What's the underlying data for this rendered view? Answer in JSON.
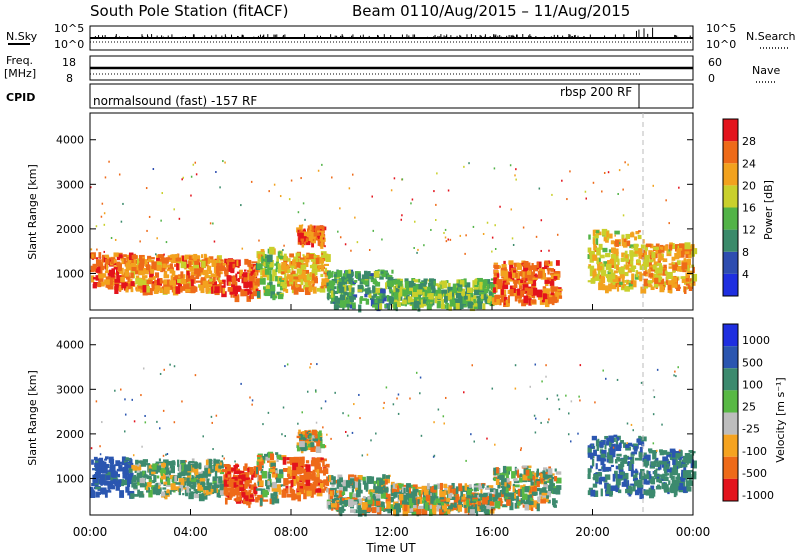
{
  "header": {
    "station": "South Pole Station (fitACF)",
    "beam": "Beam 01",
    "dates": "10/Aug/2015 – 11/Aug/2015"
  },
  "summary": {
    "nsky_label": "N.Sky",
    "nsearch_label": "N.Search",
    "freq_label": "Freq.",
    "freq_unit": "[MHz]",
    "nave_label": "Nave",
    "cpid_label": "CPID",
    "noise_ticks": [
      "10^5",
      "10^0"
    ],
    "noise_ticks_right": [
      "10^5",
      "10^0"
    ],
    "freq_ticks": [
      "18",
      "8"
    ],
    "nave_ticks": [
      "60",
      "0"
    ],
    "cpid_programs": [
      {
        "name": "normalsound (fast) -157 RF",
        "start_hour": 0
      },
      {
        "name": "rbsp 200 RF",
        "start_hour": 22
      }
    ]
  },
  "chart_data": [
    {
      "type": "heatmap",
      "name": "power-panel",
      "ylabel": "Slant Range [km]",
      "y_ticks": [
        "1000",
        "2000",
        "3000",
        "4000"
      ],
      "ylim": [
        180,
        4600
      ],
      "colorbar": {
        "label": "Power [dB]",
        "ticks": [
          "4",
          "8",
          "12",
          "16",
          "20",
          "24",
          "28"
        ],
        "colors": [
          "#1f2fe0",
          "#2e4db0",
          "#3a8a6a",
          "#52b347",
          "#c9d02c",
          "#f2a21e",
          "#ee6a18",
          "#e3131c"
        ]
      }
    },
    {
      "type": "heatmap",
      "name": "velocity-panel",
      "ylabel": "Slant Range [km]",
      "y_ticks": [
        "1000",
        "2000",
        "3000",
        "4000"
      ],
      "ylim": [
        180,
        4600
      ],
      "colorbar": {
        "label": "Velocity [m s⁻¹]",
        "ticks": [
          "1000",
          "500",
          "100",
          "25",
          "-25",
          "-100",
          "-500",
          "-1000"
        ],
        "colors": [
          "#1f2fe0",
          "#2b56b0",
          "#3c8a6e",
          "#58b844",
          "#bdbdbd",
          "#f5a320",
          "#ee6a18",
          "#e3131c"
        ]
      }
    }
  ],
  "x_axis": {
    "label": "Time UT",
    "ticks": [
      "00:00",
      "04:00",
      "08:00",
      "12:00",
      "16:00",
      "20:00",
      "00:00"
    ]
  },
  "echo_regions": [
    {
      "t0": 0.0,
      "t1": 1.6,
      "r0": 700,
      "r1": 1500,
      "power": 26,
      "vel": 700
    },
    {
      "t0": 1.6,
      "t1": 5.2,
      "r0": 650,
      "r1": 1450,
      "power": 24,
      "vel": 150
    },
    {
      "t0": 5.2,
      "t1": 6.6,
      "r0": 500,
      "r1": 1350,
      "power": 28,
      "vel": -400
    },
    {
      "t0": 6.6,
      "t1": 7.6,
      "r0": 500,
      "r1": 1600,
      "power": 16,
      "vel": 60
    },
    {
      "t0": 7.6,
      "t1": 9.4,
      "r0": 650,
      "r1": 1500,
      "power": 22,
      "vel": -300
    },
    {
      "t0": 8.2,
      "t1": 9.2,
      "r0": 1700,
      "r1": 2100,
      "power": 26,
      "vel": -30
    },
    {
      "t0": 9.4,
      "t1": 12.0,
      "r0": 300,
      "r1": 1100,
      "power": 12,
      "vel": 80
    },
    {
      "t0": 12.0,
      "t1": 16.0,
      "r0": 300,
      "r1": 900,
      "power": 14,
      "vel": 40
    },
    {
      "t0": 16.0,
      "t1": 18.6,
      "r0": 400,
      "r1": 1300,
      "power": 26,
      "vel": 60
    },
    {
      "t0": 19.8,
      "t1": 22.0,
      "r0": 700,
      "r1": 2000,
      "power": 20,
      "vel": 500
    },
    {
      "t0": 22.0,
      "t1": 24.0,
      "r0": 700,
      "r1": 1700,
      "power": 22,
      "vel": 400
    }
  ]
}
